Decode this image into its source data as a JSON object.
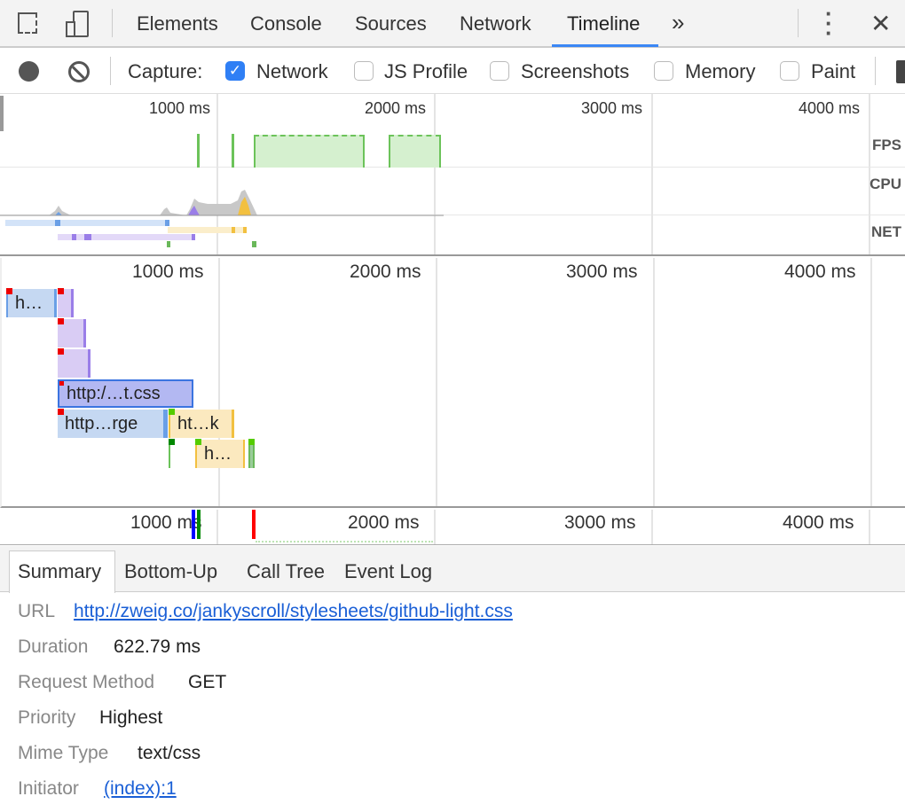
{
  "tabs": {
    "items": [
      "Elements",
      "Console",
      "Sources",
      "Network",
      "Timeline"
    ],
    "active": "Timeline",
    "more": "»"
  },
  "toolbar": {
    "capture_label": "Capture:",
    "options": [
      {
        "label": "Network",
        "checked": true
      },
      {
        "label": "JS Profile",
        "checked": false
      },
      {
        "label": "Screenshots",
        "checked": false
      },
      {
        "label": "Memory",
        "checked": false
      },
      {
        "label": "Paint",
        "checked": false
      }
    ]
  },
  "overview": {
    "ticks": [
      "1000 ms",
      "2000 ms",
      "3000 ms",
      "4000 ms"
    ],
    "lanes": [
      "FPS",
      "CPU",
      "NET"
    ]
  },
  "flame": {
    "ticks": [
      "1000 ms",
      "2000 ms",
      "3000 ms",
      "4000 ms"
    ],
    "blocks": [
      "h…",
      "http:/…t.css",
      "http…rge",
      "ht…k",
      "h…"
    ]
  },
  "bottom_ruler": {
    "ticks": [
      "1000 ms",
      "2000 ms",
      "3000 ms",
      "4000 ms"
    ]
  },
  "details": {
    "tabs": [
      "Summary",
      "Bottom-Up",
      "Call Tree",
      "Event Log"
    ],
    "active": "Summary",
    "rows": [
      {
        "label": "URL",
        "value": "http://zweig.co/jankyscroll/stylesheets/github-light.css",
        "link": true
      },
      {
        "label": "Duration",
        "value": "622.79 ms"
      },
      {
        "label": "Request Method",
        "value": "GET"
      },
      {
        "label": "Priority",
        "value": "Highest"
      },
      {
        "label": "Mime Type",
        "value": "text/css"
      },
      {
        "label": "Initiator",
        "value": "(index):1",
        "link": true
      }
    ]
  },
  "colors": {
    "accent": "#3b87f5",
    "fps": "#6cc35a",
    "script": "#f2c040",
    "parse": "#9a7ee8",
    "network": "#6a9fe6",
    "selected": "#b3b8f2"
  }
}
